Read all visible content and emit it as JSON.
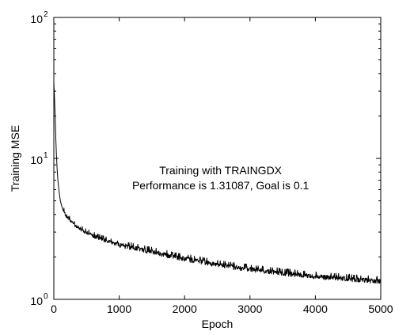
{
  "chart_data": {
    "type": "line",
    "title": "",
    "xlabel": "Epoch",
    "ylabel": "Training MSE",
    "xlim": [
      0,
      5000
    ],
    "ylim": [
      1,
      100
    ],
    "yscale": "log",
    "grid": false,
    "x_ticks": [
      0,
      1000,
      2000,
      3000,
      4000,
      5000
    ],
    "y_ticks": [
      {
        "value": 1,
        "base": "10",
        "exponent": "0"
      },
      {
        "value": 10,
        "base": "10",
        "exponent": "1"
      },
      {
        "value": 100,
        "base": "10",
        "exponent": "2"
      }
    ],
    "annotation": {
      "lines": [
        "Training with TRAINGDX",
        "Performance is 1.31087, Goal is 0.1"
      ],
      "x": 2550,
      "y": 10
    },
    "series": [
      {
        "color": "#000000",
        "x": [
          0,
          10,
          20,
          30,
          40,
          50,
          60,
          70,
          80,
          90,
          100,
          120,
          140,
          160,
          180,
          200,
          250,
          300,
          350,
          400,
          500,
          600,
          700,
          800,
          900,
          1000,
          1200,
          1400,
          1600,
          1800,
          2000,
          2200,
          2400,
          2600,
          2800,
          3000,
          3200,
          3400,
          3600,
          3800,
          4000,
          4200,
          4400,
          4600,
          4800,
          5000
        ],
        "y": [
          35,
          27,
          20,
          14,
          10.5,
          8.5,
          7.2,
          6.4,
          5.9,
          5.4,
          5.0,
          4.6,
          4.3,
          4.1,
          3.95,
          3.85,
          3.6,
          3.4,
          3.25,
          3.15,
          2.95,
          2.8,
          2.7,
          2.6,
          2.5,
          2.42,
          2.3,
          2.2,
          2.1,
          2.0,
          1.92,
          1.85,
          1.78,
          1.72,
          1.66,
          1.62,
          1.58,
          1.54,
          1.5,
          1.47,
          1.44,
          1.42,
          1.4,
          1.37,
          1.35,
          1.33
        ]
      }
    ]
  }
}
